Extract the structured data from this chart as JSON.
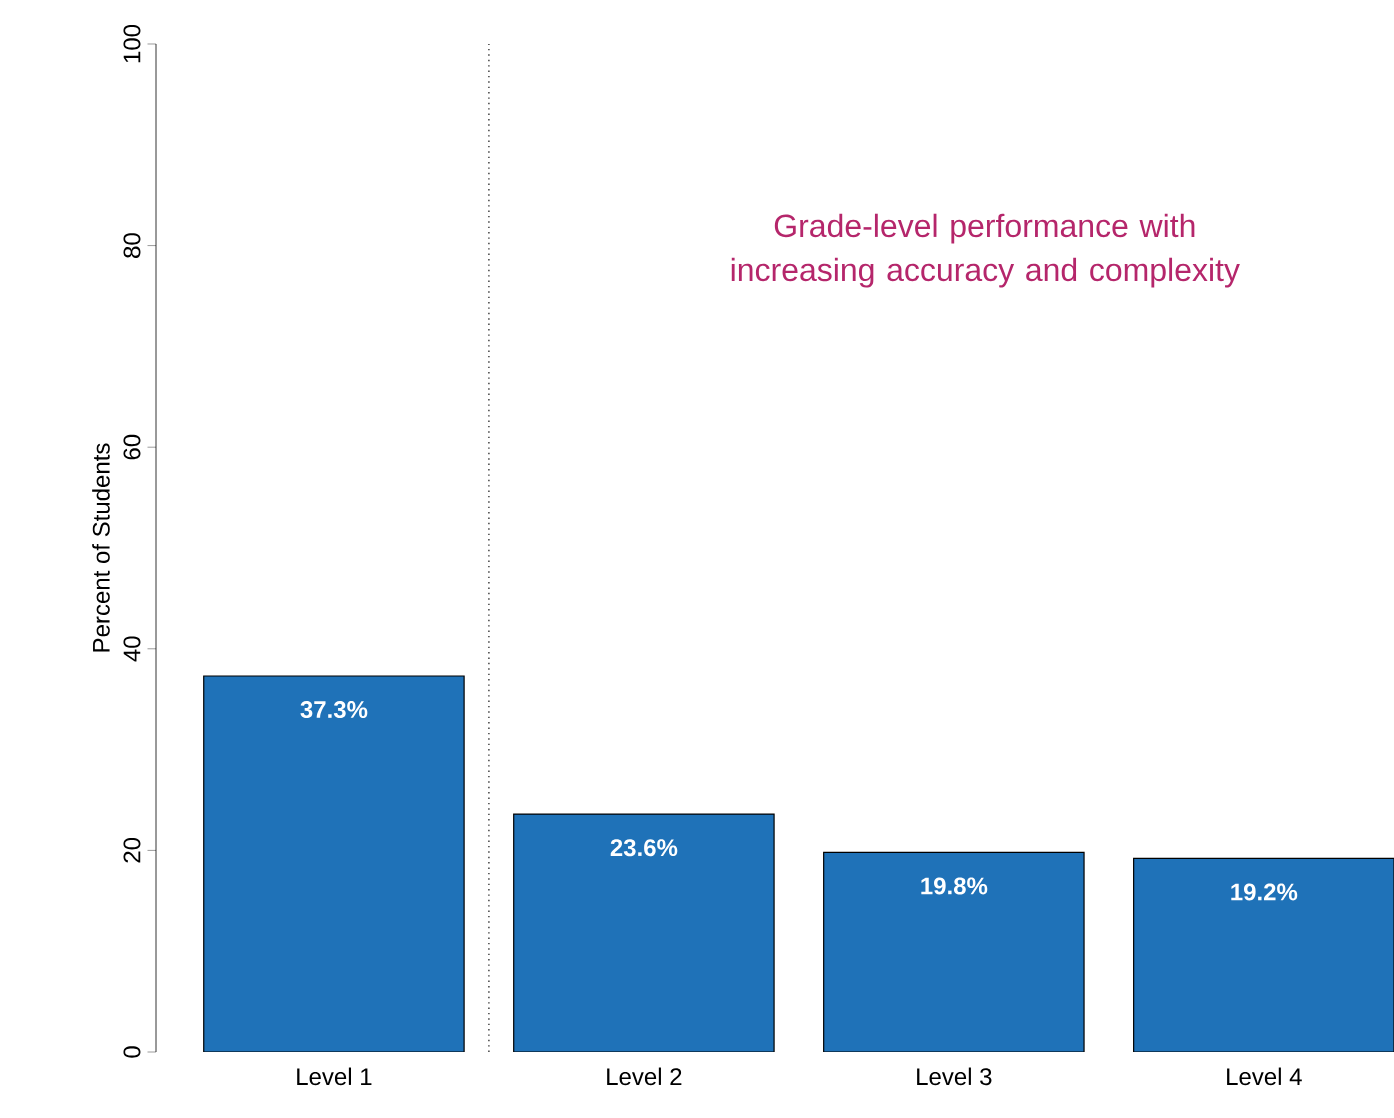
{
  "chart_data": {
    "type": "bar",
    "ylabel": "Percent of Students",
    "categories": [
      "Level 1",
      "Level 2",
      "Level 3",
      "Level 4"
    ],
    "values": [
      37.3,
      23.6,
      19.8,
      19.2
    ],
    "color": "#1f72b8",
    "value_labels": [
      "37.3%",
      "23.6%",
      "19.8%",
      "19.2%"
    ],
    "ylim": [
      0,
      100
    ],
    "yticks": [
      0,
      20,
      40,
      60,
      80,
      100
    ],
    "annotations": [
      "Grade-level performance with increasing accuracy and complexity"
    ]
  }
}
